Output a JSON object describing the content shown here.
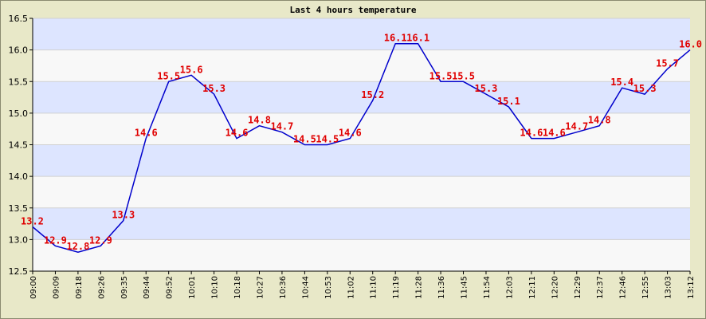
{
  "chart_data": {
    "type": "line",
    "title": "Last 4 hours temperature",
    "xlabel": "",
    "ylabel": "",
    "ylim": [
      12.5,
      16.5
    ],
    "y_ticks": [
      "12.5",
      "13.0",
      "13.5",
      "14.0",
      "14.5",
      "15.0",
      "15.5",
      "16.0",
      "16.5"
    ],
    "x": [
      "09:00",
      "09:09",
      "09:18",
      "09:26",
      "09:35",
      "09:44",
      "09:52",
      "10:01",
      "10:10",
      "10:18",
      "10:27",
      "10:36",
      "10:44",
      "10:53",
      "11:02",
      "11:10",
      "11:19",
      "11:28",
      "11:36",
      "11:45",
      "11:54",
      "12:03",
      "12:11",
      "12:20",
      "12:29",
      "12:37",
      "12:46",
      "12:55",
      "13:03",
      "13:12"
    ],
    "series": [
      {
        "values": [
          13.2,
          12.9,
          12.8,
          12.9,
          13.3,
          14.6,
          15.5,
          15.6,
          15.3,
          14.6,
          14.8,
          14.7,
          14.5,
          14.5,
          14.6,
          15.2,
          16.1,
          16.1,
          15.5,
          15.5,
          15.3,
          15.1,
          14.6,
          14.6,
          14.7,
          14.8,
          15.4,
          15.3,
          15.7,
          16.0
        ],
        "labels": [
          "13.2",
          "12.9",
          "12.8",
          "12.9",
          "13.3",
          "14.6",
          "15.5",
          "15.6",
          "15.3",
          "14.6",
          "14.8",
          "14.7",
          "14.5",
          "14.5",
          "14.6",
          "15.2",
          "16.1",
          "16.1",
          "15.5",
          "15.5",
          "15.3",
          "15.1",
          "14.6",
          "14.6",
          "14.7",
          "14.8",
          "15.4",
          "15.3",
          "15.7",
          "16.0"
        ]
      }
    ],
    "grid": true,
    "legend": "none",
    "colors": {
      "line": "#0000cc",
      "labels": "#e00000",
      "band_light": "#f8f8f8",
      "band_blue": "#dde5ff",
      "background": "#e8e8c8"
    }
  }
}
